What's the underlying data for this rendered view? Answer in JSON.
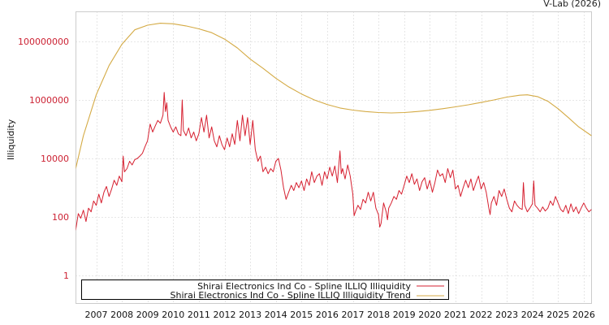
{
  "header": {
    "credit": "V-Lab (2026)"
  },
  "chart_data": {
    "type": "line",
    "title": "",
    "xlabel": "",
    "ylabel": "Illiquidity",
    "yscale": "log",
    "ylim": [
      0.1,
      1000000000
    ],
    "xlim": [
      2006.2,
      2026.3
    ],
    "grid": true,
    "legend_position": "bottom-left inside",
    "y_ticks": [
      {
        "value": 1,
        "label": "1"
      },
      {
        "value": 100,
        "label": "100"
      },
      {
        "value": 10000,
        "label": "10000"
      },
      {
        "value": 1000000,
        "label": "1000000"
      },
      {
        "value": 100000000,
        "label": "100000000"
      }
    ],
    "x_ticks": [
      "2007",
      "2008",
      "2009",
      "2010",
      "2011",
      "2012",
      "2013",
      "2014",
      "2015",
      "2016",
      "2017",
      "2018",
      "2019",
      "2020",
      "2021",
      "2022",
      "2023",
      "2024",
      "2025",
      "2026"
    ],
    "series": [
      {
        "name": "Shirai Electronics Ind Co - Spline ILLIQ Illiquidity",
        "color": "#d62030",
        "points": [
          [
            2006.2,
            35
          ],
          [
            2006.3,
            130
          ],
          [
            2006.4,
            90
          ],
          [
            2006.5,
            170
          ],
          [
            2006.6,
            70
          ],
          [
            2006.7,
            200
          ],
          [
            2006.8,
            150
          ],
          [
            2006.9,
            350
          ],
          [
            2007.0,
            250
          ],
          [
            2007.1,
            600
          ],
          [
            2007.2,
            300
          ],
          [
            2007.3,
            700
          ],
          [
            2007.4,
            1100
          ],
          [
            2007.5,
            500
          ],
          [
            2007.6,
            900
          ],
          [
            2007.7,
            1800
          ],
          [
            2007.8,
            1200
          ],
          [
            2007.9,
            2500
          ],
          [
            2008.0,
            1600
          ],
          [
            2008.05,
            12000
          ],
          [
            2008.1,
            3500
          ],
          [
            2008.2,
            4500
          ],
          [
            2008.3,
            8000
          ],
          [
            2008.4,
            6000
          ],
          [
            2008.5,
            9000
          ],
          [
            2008.6,
            10000
          ],
          [
            2008.7,
            12000
          ],
          [
            2008.8,
            15000
          ],
          [
            2008.9,
            25000
          ],
          [
            2009.0,
            40000
          ],
          [
            2009.1,
            150000
          ],
          [
            2009.2,
            80000
          ],
          [
            2009.3,
            130000
          ],
          [
            2009.4,
            200000
          ],
          [
            2009.5,
            160000
          ],
          [
            2009.6,
            300000
          ],
          [
            2009.65,
            1800000
          ],
          [
            2009.7,
            400000
          ],
          [
            2009.75,
            800000
          ],
          [
            2009.8,
            200000
          ],
          [
            2009.9,
            120000
          ],
          [
            2010.0,
            80000
          ],
          [
            2010.1,
            120000
          ],
          [
            2010.2,
            70000
          ],
          [
            2010.3,
            60000
          ],
          [
            2010.35,
            1000000
          ],
          [
            2010.4,
            90000
          ],
          [
            2010.5,
            60000
          ],
          [
            2010.6,
            110000
          ],
          [
            2010.7,
            50000
          ],
          [
            2010.8,
            80000
          ],
          [
            2010.9,
            40000
          ],
          [
            2011.0,
            70000
          ],
          [
            2011.1,
            250000
          ],
          [
            2011.2,
            80000
          ],
          [
            2011.3,
            300000
          ],
          [
            2011.4,
            50000
          ],
          [
            2011.5,
            120000
          ],
          [
            2011.6,
            40000
          ],
          [
            2011.7,
            25000
          ],
          [
            2011.8,
            60000
          ],
          [
            2011.9,
            30000
          ],
          [
            2012.0,
            20000
          ],
          [
            2012.1,
            50000
          ],
          [
            2012.2,
            25000
          ],
          [
            2012.3,
            70000
          ],
          [
            2012.4,
            30000
          ],
          [
            2012.5,
            200000
          ],
          [
            2012.6,
            40000
          ],
          [
            2012.7,
            300000
          ],
          [
            2012.8,
            60000
          ],
          [
            2012.9,
            250000
          ],
          [
            2013.0,
            30000
          ],
          [
            2013.1,
            200000
          ],
          [
            2013.2,
            20000
          ],
          [
            2013.3,
            8000
          ],
          [
            2013.4,
            12000
          ],
          [
            2013.5,
            3500
          ],
          [
            2013.6,
            5000
          ],
          [
            2013.7,
            3000
          ],
          [
            2013.8,
            4500
          ],
          [
            2013.9,
            3500
          ],
          [
            2014.0,
            8000
          ],
          [
            2014.1,
            10000
          ],
          [
            2014.2,
            4000
          ],
          [
            2014.3,
            1000
          ],
          [
            2014.4,
            400
          ],
          [
            2014.5,
            700
          ],
          [
            2014.6,
            1200
          ],
          [
            2014.7,
            800
          ],
          [
            2014.8,
            1500
          ],
          [
            2014.9,
            1000
          ],
          [
            2015.0,
            1700
          ],
          [
            2015.1,
            800
          ],
          [
            2015.2,
            2000
          ],
          [
            2015.3,
            1200
          ],
          [
            2015.4,
            3500
          ],
          [
            2015.5,
            1500
          ],
          [
            2015.6,
            2500
          ],
          [
            2015.7,
            3000
          ],
          [
            2015.8,
            1200
          ],
          [
            2015.9,
            3500
          ],
          [
            2016.0,
            2000
          ],
          [
            2016.1,
            5000
          ],
          [
            2016.2,
            2500
          ],
          [
            2016.3,
            5500
          ],
          [
            2016.4,
            1500
          ],
          [
            2016.5,
            18000
          ],
          [
            2016.55,
            3000
          ],
          [
            2016.6,
            4500
          ],
          [
            2016.7,
            2000
          ],
          [
            2016.8,
            6000
          ],
          [
            2016.9,
            2500
          ],
          [
            2017.0,
            600
          ],
          [
            2017.05,
            110
          ],
          [
            2017.1,
            150
          ],
          [
            2017.2,
            250
          ],
          [
            2017.3,
            180
          ],
          [
            2017.4,
            400
          ],
          [
            2017.5,
            300
          ],
          [
            2017.6,
            700
          ],
          [
            2017.7,
            350
          ],
          [
            2017.8,
            700
          ],
          [
            2017.9,
            200
          ],
          [
            2018.0,
            120
          ],
          [
            2018.05,
            45
          ],
          [
            2018.1,
            60
          ],
          [
            2018.2,
            300
          ],
          [
            2018.3,
            150
          ],
          [
            2018.35,
            80
          ],
          [
            2018.4,
            200
          ],
          [
            2018.5,
            300
          ],
          [
            2018.6,
            500
          ],
          [
            2018.7,
            400
          ],
          [
            2018.8,
            800
          ],
          [
            2018.9,
            600
          ],
          [
            2019.0,
            1200
          ],
          [
            2019.1,
            2500
          ],
          [
            2019.2,
            1500
          ],
          [
            2019.3,
            3000
          ],
          [
            2019.4,
            1300
          ],
          [
            2019.5,
            2000
          ],
          [
            2019.6,
            800
          ],
          [
            2019.7,
            1600
          ],
          [
            2019.8,
            2200
          ],
          [
            2019.9,
            900
          ],
          [
            2020.0,
            1800
          ],
          [
            2020.1,
            700
          ],
          [
            2020.2,
            1500
          ],
          [
            2020.3,
            4000
          ],
          [
            2020.4,
            2500
          ],
          [
            2020.5,
            3000
          ],
          [
            2020.6,
            1500
          ],
          [
            2020.7,
            4500
          ],
          [
            2020.8,
            2200
          ],
          [
            2020.9,
            4000
          ],
          [
            2021.0,
            900
          ],
          [
            2021.1,
            1200
          ],
          [
            2021.2,
            500
          ],
          [
            2021.3,
            1000
          ],
          [
            2021.4,
            1800
          ],
          [
            2021.5,
            1000
          ],
          [
            2021.6,
            2000
          ],
          [
            2021.7,
            800
          ],
          [
            2021.8,
            1500
          ],
          [
            2021.9,
            2500
          ],
          [
            2022.0,
            900
          ],
          [
            2022.1,
            1500
          ],
          [
            2022.2,
            700
          ],
          [
            2022.3,
            200
          ],
          [
            2022.35,
            120
          ],
          [
            2022.4,
            300
          ],
          [
            2022.5,
            500
          ],
          [
            2022.6,
            250
          ],
          [
            2022.7,
            800
          ],
          [
            2022.8,
            500
          ],
          [
            2022.9,
            900
          ],
          [
            2023.0,
            400
          ],
          [
            2023.1,
            200
          ],
          [
            2023.2,
            150
          ],
          [
            2023.3,
            350
          ],
          [
            2023.4,
            250
          ],
          [
            2023.5,
            200
          ],
          [
            2023.6,
            180
          ],
          [
            2023.65,
            1500
          ],
          [
            2023.7,
            250
          ],
          [
            2023.8,
            150
          ],
          [
            2023.9,
            200
          ],
          [
            2024.0,
            280
          ],
          [
            2024.05,
            1700
          ],
          [
            2024.1,
            250
          ],
          [
            2024.2,
            200
          ],
          [
            2024.3,
            150
          ],
          [
            2024.4,
            220
          ],
          [
            2024.5,
            160
          ],
          [
            2024.6,
            200
          ],
          [
            2024.7,
            350
          ],
          [
            2024.8,
            250
          ],
          [
            2024.9,
            500
          ],
          [
            2025.0,
            300
          ],
          [
            2025.1,
            180
          ],
          [
            2025.2,
            150
          ],
          [
            2025.3,
            250
          ],
          [
            2025.4,
            130
          ],
          [
            2025.5,
            280
          ],
          [
            2025.6,
            150
          ],
          [
            2025.7,
            220
          ],
          [
            2025.8,
            130
          ],
          [
            2025.9,
            200
          ],
          [
            2026.0,
            300
          ],
          [
            2026.1,
            200
          ],
          [
            2026.2,
            150
          ],
          [
            2026.3,
            180
          ]
        ]
      },
      {
        "name": "Shirai Electronics Ind Co - Spline ILLIQ Illiquidity Trend",
        "color": "#d4aa44",
        "points": [
          [
            2006.2,
            4500
          ],
          [
            2006.5,
            60000
          ],
          [
            2007.0,
            1500000
          ],
          [
            2007.5,
            15000000
          ],
          [
            2008.0,
            80000000
          ],
          [
            2008.5,
            250000000
          ],
          [
            2009.0,
            360000000
          ],
          [
            2009.5,
            420000000
          ],
          [
            2010.0,
            400000000
          ],
          [
            2010.5,
            340000000
          ],
          [
            2011.0,
            270000000
          ],
          [
            2011.5,
            200000000
          ],
          [
            2012.0,
            120000000
          ],
          [
            2012.5,
            60000000
          ],
          [
            2013.0,
            25000000
          ],
          [
            2013.5,
            12000000
          ],
          [
            2014.0,
            5500000
          ],
          [
            2014.5,
            2800000
          ],
          [
            2015.0,
            1600000
          ],
          [
            2015.5,
            1000000
          ],
          [
            2016.0,
            700000
          ],
          [
            2016.5,
            530000
          ],
          [
            2017.0,
            450000
          ],
          [
            2017.5,
            400000
          ],
          [
            2018.0,
            370000
          ],
          [
            2018.5,
            360000
          ],
          [
            2019.0,
            370000
          ],
          [
            2019.5,
            400000
          ],
          [
            2020.0,
            440000
          ],
          [
            2020.5,
            500000
          ],
          [
            2021.0,
            580000
          ],
          [
            2021.5,
            680000
          ],
          [
            2022.0,
            820000
          ],
          [
            2022.5,
            1000000
          ],
          [
            2023.0,
            1250000
          ],
          [
            2023.5,
            1450000
          ],
          [
            2023.8,
            1500000
          ],
          [
            2024.2,
            1300000
          ],
          [
            2024.6,
            900000
          ],
          [
            2025.0,
            500000
          ],
          [
            2025.4,
            250000
          ],
          [
            2025.8,
            120000
          ],
          [
            2026.3,
            60000
          ]
        ]
      }
    ]
  },
  "legend": {
    "items": [
      {
        "label": "Shirai Electronics Ind Co - Spline ILLIQ Illiquidity",
        "color": "#d62030"
      },
      {
        "label": "Shirai Electronics Ind Co - Spline ILLIQ Illiquidity Trend",
        "color": "#d4aa44"
      }
    ]
  }
}
